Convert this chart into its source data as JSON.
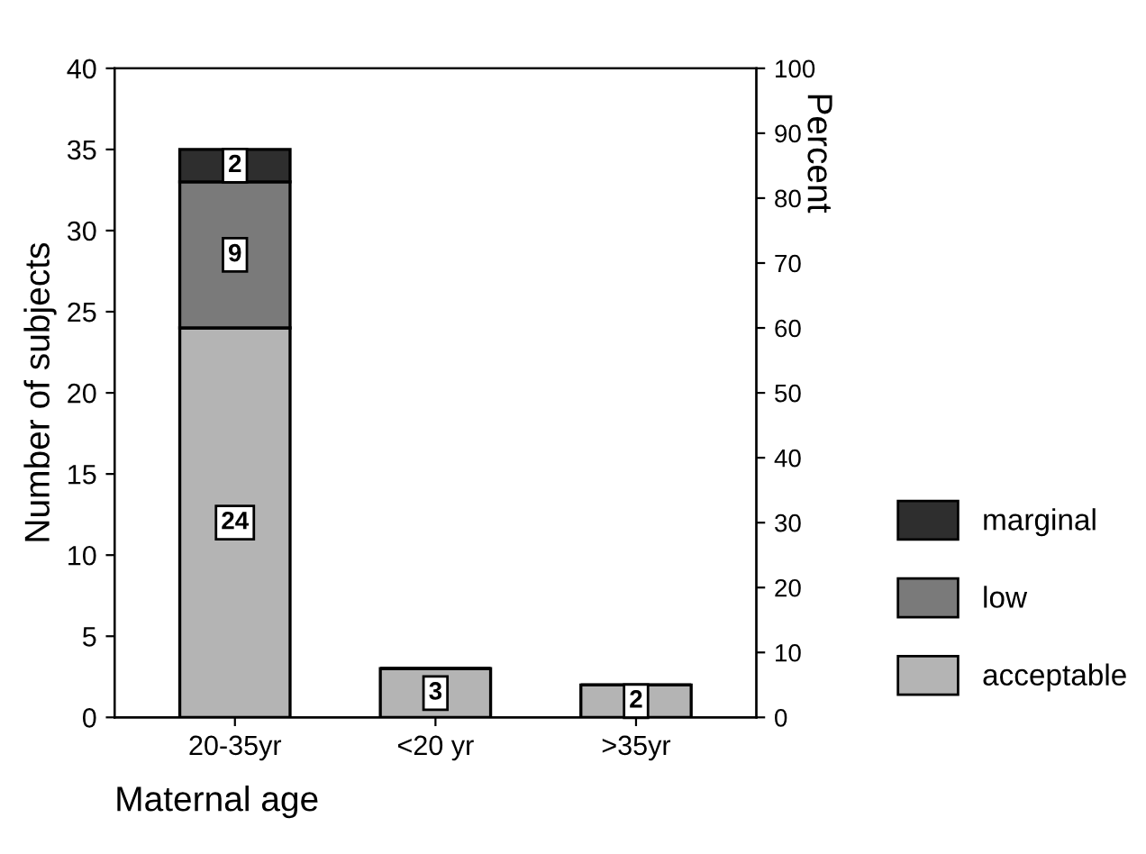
{
  "chart_data": {
    "type": "bar",
    "stacked": true,
    "categories": [
      "20-35yr",
      "<20 yr",
      ">35yr"
    ],
    "series": [
      {
        "name": "acceptable",
        "color": "#b4b4b4",
        "values": [
          24,
          3,
          2
        ]
      },
      {
        "name": "low",
        "color": "#7a7a7a",
        "values": [
          9,
          null,
          null
        ]
      },
      {
        "name": "marginal",
        "color": "#2e2e2e",
        "values": [
          2,
          null,
          null
        ]
      }
    ],
    "data_labels": true,
    "xlabel": "Maternal age",
    "ylabel": "Number of subjects",
    "y2label": "Percent",
    "ylim": [
      0,
      40
    ],
    "yticks": [
      0,
      5,
      10,
      15,
      20,
      25,
      30,
      35,
      40
    ],
    "y2lim": [
      0,
      100
    ],
    "y2ticks": [
      0,
      10,
      20,
      30,
      40,
      50,
      60,
      70,
      80,
      90,
      100
    ],
    "legend": "right",
    "grid": false
  }
}
